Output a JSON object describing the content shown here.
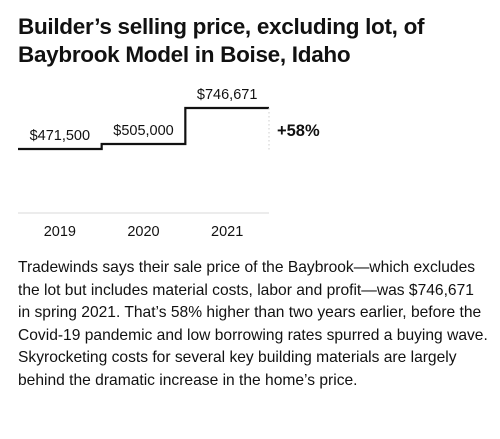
{
  "title": "Builder’s selling price, excluding lot, of Baybrook Model in Boise, Idaho",
  "caption": "Tradewinds says their sale price of the Baybrook—which excludes the lot but includes material costs, labor and profit—was $746,671 in spring 2021. That’s 58% higher than two years earlier, before the Covid-19 pandemic and low borrowing rates spurred a buying wave. Skyrocketing costs for several key building materials are largely behind the dramatic increase in the home’s price.",
  "chart_data": {
    "type": "line",
    "step": true,
    "categories": [
      "2019",
      "2020",
      "2021"
    ],
    "values": [
      471500,
      505000,
      746671
    ],
    "data_labels": [
      "$471,500",
      "$505,000",
      "$746,671"
    ],
    "annotation": "+58%",
    "ylim": [
      0,
      800000
    ],
    "grid": false,
    "colors": {
      "line": "#111111",
      "baseline": "#d9d9d9",
      "dotted": "#cccccc"
    }
  }
}
